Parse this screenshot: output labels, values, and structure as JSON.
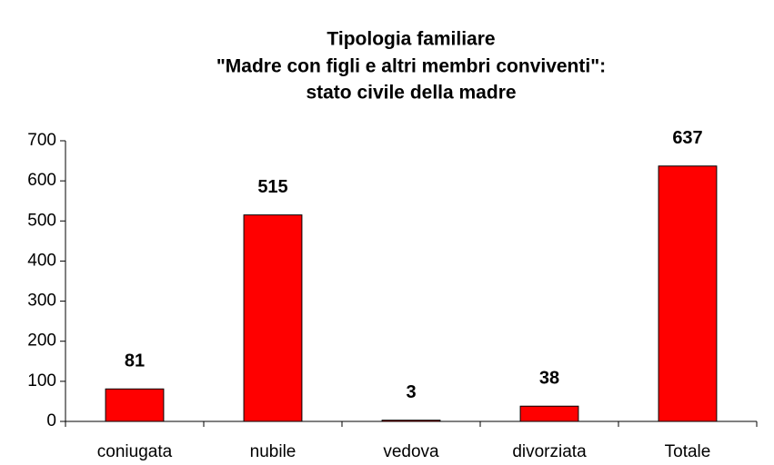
{
  "chart_data": {
    "type": "bar",
    "title": [
      "Tipologia familiare",
      "\"Madre con figli e altri membri conviventi\":",
      "stato civile della madre"
    ],
    "categories": [
      "coniugata",
      "nubile",
      "vedova",
      "divorziata",
      "Totale"
    ],
    "values": [
      81,
      515,
      3,
      38,
      637
    ],
    "color": "#ff0000",
    "ylim": [
      0,
      700
    ],
    "yticks": [
      0,
      100,
      200,
      300,
      400,
      500,
      600,
      700
    ],
    "grid": false
  }
}
